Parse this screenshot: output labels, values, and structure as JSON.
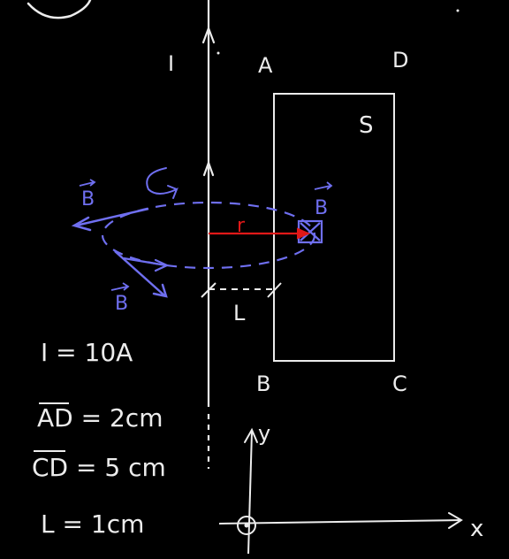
{
  "labels": {
    "current": "I",
    "corner_a": "A",
    "corner_b": "B",
    "corner_c": "C",
    "corner_d": "D",
    "area": "S",
    "radius": "r",
    "distance": "L",
    "field_left": "B",
    "field_lower_left": "B",
    "field_right": "B",
    "axis_y": "y",
    "axis_x": "x"
  },
  "givens": [
    {
      "symbol": "I",
      "value": "= 10A"
    },
    {
      "symbol": "AD",
      "value": "= 2cm"
    },
    {
      "symbol": "CD",
      "value": "= 5 cm"
    },
    {
      "symbol": "L",
      "value": "= 1cm"
    }
  ],
  "colors": {
    "board": "#000000",
    "chalk_white": "#ececec",
    "field_blue": "#6f6ff0",
    "radius_red": "#e01818"
  }
}
